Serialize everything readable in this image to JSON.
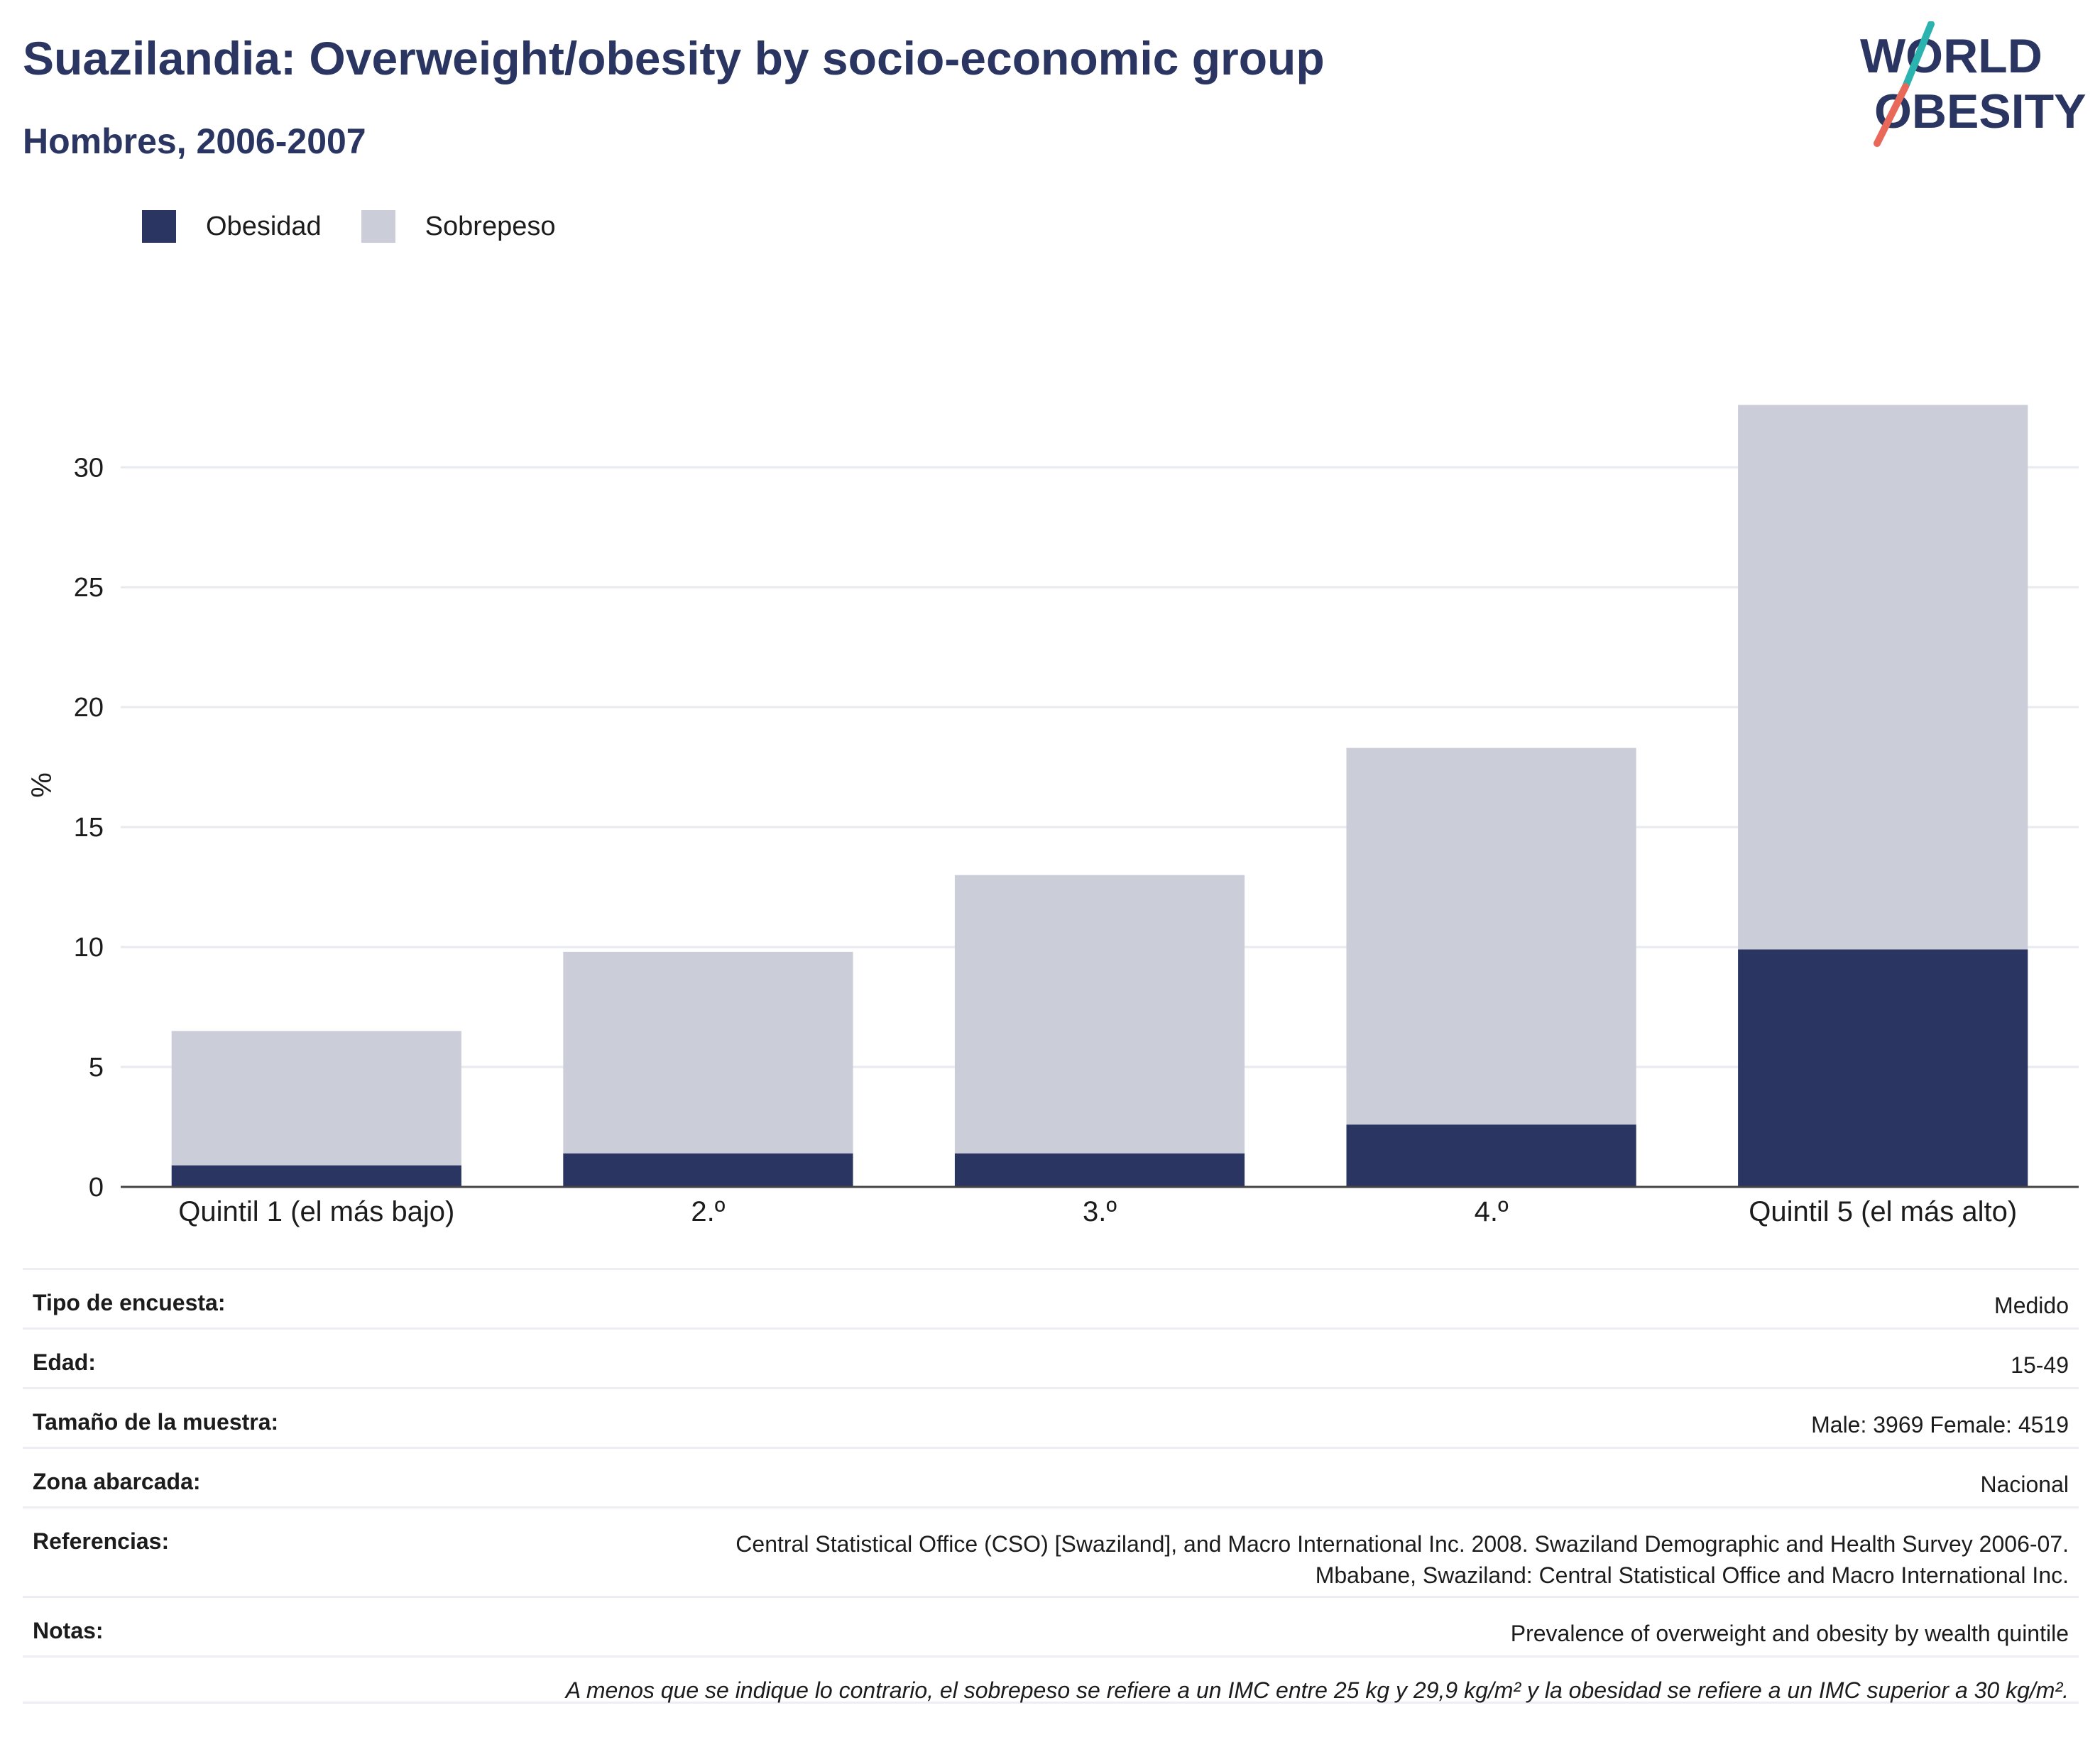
{
  "header": {
    "title": "Suazilandia: Overweight/obesity by socio-economic group",
    "subtitle": "Hombres, 2006-2007"
  },
  "logo": {
    "line1": "WORLD",
    "line2": "OBESITY",
    "colors": {
      "text": "#2a3561",
      "slash_top": "#2bb3b0",
      "slash_bottom": "#e8685a"
    }
  },
  "legend": [
    {
      "label": "Obesidad",
      "color": "#2a3561"
    },
    {
      "label": "Sobrepeso",
      "color": "#cbcdd8"
    }
  ],
  "chart_data": {
    "type": "bar",
    "stacked": true,
    "ylabel": "%",
    "xlabel": "",
    "ylim": [
      0,
      33.5
    ],
    "yticks": [
      0,
      5,
      10,
      15,
      20,
      25,
      30
    ],
    "grid": true,
    "legend_position": "top-left",
    "categories": [
      "Quintil 1 (el más bajo)",
      "2.º",
      "3.º",
      "4.º",
      "Quintil 5 (el más alto)"
    ],
    "series": [
      {
        "name": "Obesidad",
        "color": "#2a3561",
        "values": [
          0.9,
          1.4,
          1.4,
          2.6,
          9.9
        ]
      },
      {
        "name": "Sobrepeso",
        "color": "#cbcdd8",
        "values": [
          5.6,
          8.4,
          11.6,
          15.7,
          22.7
        ]
      }
    ]
  },
  "info": {
    "rows": [
      {
        "label": "Tipo de encuesta:",
        "value": [
          "Medido"
        ]
      },
      {
        "label": "Edad:",
        "value": [
          "15-49"
        ]
      },
      {
        "label": "Tamaño de la muestra:",
        "value": [
          "Male: 3969 Female: 4519"
        ]
      },
      {
        "label": "Zona abarcada:",
        "value": [
          "Nacional"
        ]
      },
      {
        "label": "Referencias:",
        "value": [
          "Central Statistical Office (CSO) [Swaziland], and Macro International Inc. 2008. Swaziland Demographic and Health Survey 2006-07.",
          "Mbabane, Swaziland: Central Statistical Office and Macro International Inc."
        ]
      },
      {
        "label": "Notas:",
        "value": [
          "Prevalence of overweight and obesity by wealth quintile"
        ]
      }
    ],
    "footnote": "A menos que se indique lo contrario, el sobrepeso se refiere a un IMC entre 25 kg y 29,9 kg/m² y la obesidad se refiere a un IMC superior a 30 kg/m²."
  }
}
